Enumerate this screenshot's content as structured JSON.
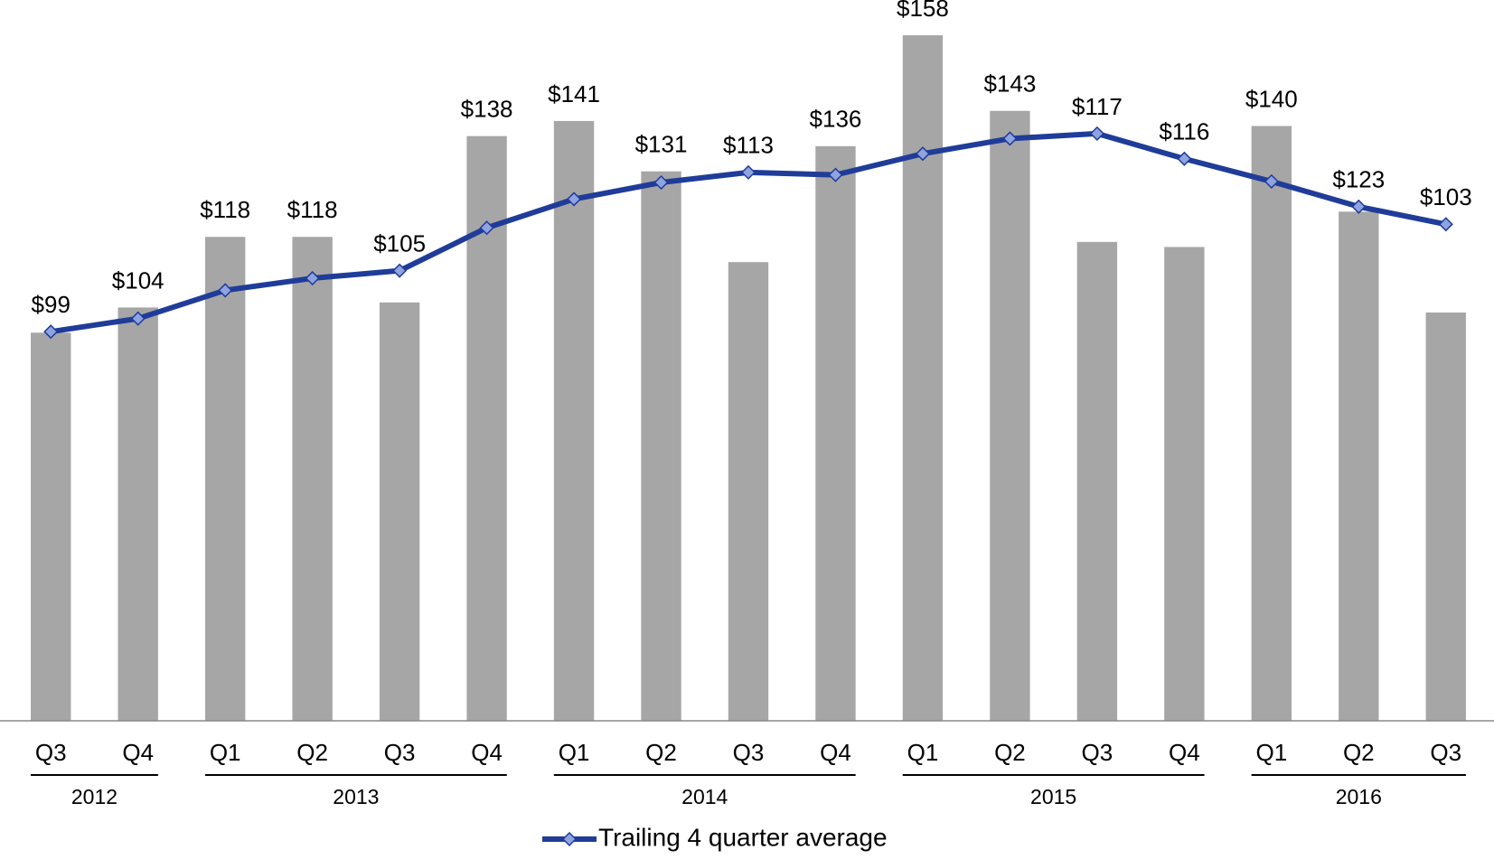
{
  "chart_data": {
    "type": "bar_line",
    "categories": [
      "Q3",
      "Q4",
      "Q1",
      "Q2",
      "Q3",
      "Q4",
      "Q1",
      "Q2",
      "Q3",
      "Q4",
      "Q1",
      "Q2",
      "Q3",
      "Q4",
      "Q1",
      "Q2",
      "Q3"
    ],
    "x_groups": [
      {
        "label": "2012",
        "count": 2
      },
      {
        "label": "2013",
        "count": 4
      },
      {
        "label": "2014",
        "count": 4
      },
      {
        "label": "2015",
        "count": 4
      },
      {
        "label": "2016",
        "count": 3
      }
    ],
    "series": [
      {
        "type": "bar",
        "color": "#a6a6a6",
        "values": [
          99,
          104,
          118,
          118,
          105,
          138,
          141,
          131,
          113,
          136,
          158,
          143,
          117,
          116,
          140,
          123,
          103
        ],
        "value_labels": [
          "$99",
          "$104",
          "$118",
          "$118",
          "$105",
          "$138",
          "$141",
          "$131",
          "$113",
          "$136",
          "$158",
          "$143",
          "$117",
          "$116",
          "$140",
          "$123",
          "$103"
        ]
      },
      {
        "type": "line",
        "name": "Trailing 4 quarter average",
        "color": "#1f3c99",
        "marker_color": "#8fa3e0",
        "values": [
          99.2,
          101.8,
          107.4,
          109.8,
          111.3,
          119.8,
          125.5,
          128.8,
          130.8,
          130.3,
          134.5,
          137.5,
          138.5,
          133.5,
          129,
          124,
          120.5
        ]
      }
    ],
    "ylim": [
      22,
      165
    ],
    "legend": "bottom"
  }
}
